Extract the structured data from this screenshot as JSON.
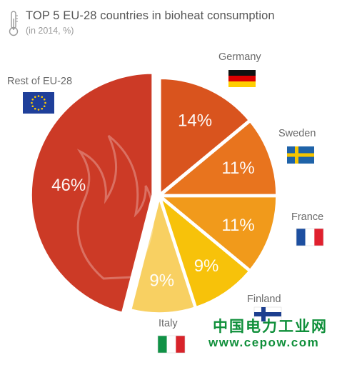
{
  "header": {
    "title": "TOP 5 EU-28 countries in bioheat consumption",
    "subtitle": "(in 2014, %)",
    "icon": "thermometer-icon"
  },
  "chart_data": {
    "type": "pie",
    "title": "TOP 5 EU-28 countries in bioheat consumption",
    "subtitle": "(in 2014, %)",
    "slices": [
      {
        "label": "Germany",
        "value": 14,
        "value_label": "14%",
        "color": "#d9541e",
        "flag": "flag-germany-icon"
      },
      {
        "label": "Sweden",
        "value": 11,
        "value_label": "11%",
        "color": "#e8741e",
        "flag": "flag-sweden-icon"
      },
      {
        "label": "France",
        "value": 11,
        "value_label": "11%",
        "color": "#f19a1b",
        "flag": "flag-france-icon"
      },
      {
        "label": "Finland",
        "value": 9,
        "value_label": "9%",
        "color": "#f7c20a",
        "flag": "flag-finland-icon"
      },
      {
        "label": "Italy",
        "value": 9,
        "value_label": "9%",
        "color": "#f8d062",
        "flag": "flag-italy-icon"
      },
      {
        "label": "Rest of EU-28",
        "value": 46,
        "value_label": "46%",
        "color": "#cc3a26",
        "flag": "flag-eu-icon"
      }
    ]
  },
  "watermark": {
    "chinese": "中国电力工业网",
    "url": "www.cepow.com"
  }
}
